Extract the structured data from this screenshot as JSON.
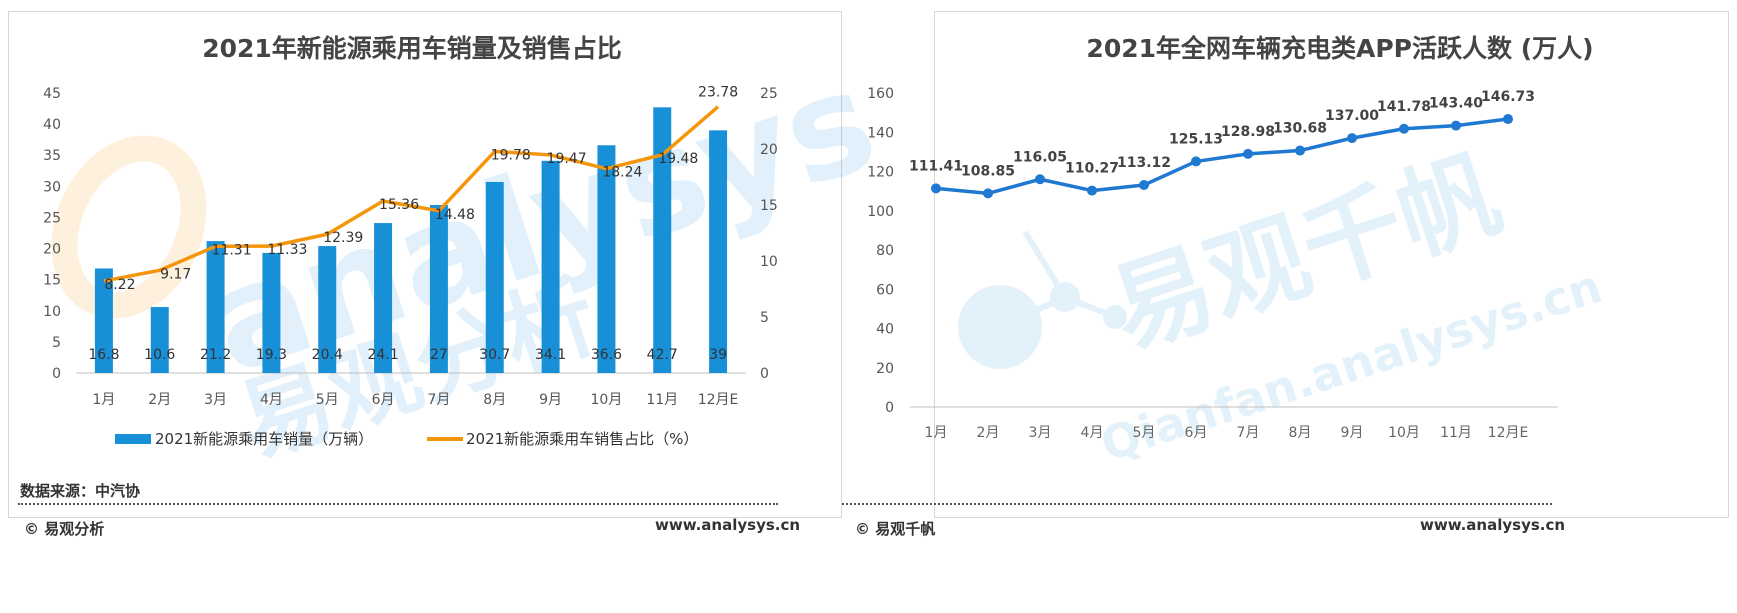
{
  "colors": {
    "bar": "#1890d8",
    "line_orange": "#f5960a",
    "line_blue": "#1f78d1",
    "axis_text": "#555555"
  },
  "left_chart_title": "2021年新能源乘用车销量及销售占比",
  "right_chart_title": "2021年全网车辆充电类APP活跃人数 (万人)",
  "footer": {
    "source": "数据来源：中汽协",
    "copyright_left": "© 易观分析",
    "url_left": "www.analysys.cn",
    "copyright_right": "© 易观千帆",
    "url_right": "www.analysys.cn"
  },
  "watermarks": {
    "left_large": "analysys",
    "left_cn": "易观分析",
    "right_cn": "易观千帆",
    "right_url": "Qianfan.analysys.cn"
  },
  "chart_data": [
    {
      "type": "bar",
      "title": "2021年新能源乘用车销量及销售占比",
      "categories": [
        "1月",
        "2月",
        "3月",
        "4月",
        "5月",
        "6月",
        "7月",
        "8月",
        "9月",
        "10月",
        "11月",
        "12月E"
      ],
      "series": [
        {
          "name": "2021新能源乘用车销量（万辆）",
          "type": "bar",
          "axis": "left",
          "values": [
            16.8,
            10.6,
            21.2,
            19.3,
            20.4,
            24.1,
            27,
            30.7,
            34.1,
            36.6,
            42.7,
            39
          ]
        },
        {
          "name": "2021新能源乘用车销售占比（%）",
          "type": "line",
          "axis": "right",
          "values": [
            8.22,
            9.17,
            11.31,
            11.33,
            12.39,
            15.36,
            14.48,
            19.78,
            19.47,
            18.24,
            19.48,
            23.78
          ]
        }
      ],
      "y_left": {
        "lim": [
          0,
          45
        ],
        "ticks": [
          0,
          5,
          10,
          15,
          20,
          25,
          30,
          35,
          40,
          45
        ]
      },
      "y_right": {
        "lim": [
          0,
          25
        ],
        "ticks": [
          0,
          5,
          10,
          15,
          20,
          25
        ]
      },
      "legend": "bottom"
    },
    {
      "type": "line",
      "title": "2021年全网车辆充电类APP活跃人数 (万人)",
      "categories": [
        "1月",
        "2月",
        "3月",
        "4月",
        "5月",
        "6月",
        "7月",
        "8月",
        "9月",
        "10月",
        "11月",
        "12月E"
      ],
      "series": [
        {
          "values": [
            111.41,
            108.85,
            116.05,
            110.27,
            113.12,
            125.13,
            128.98,
            130.68,
            137.0,
            141.78,
            143.4,
            146.73
          ],
          "labels": [
            "111.41",
            "108.85",
            "116.05",
            "110.27",
            "113.12",
            "125.13",
            "128.98",
            "130.68",
            "137.00",
            "141.78",
            "143.40",
            "146.73"
          ]
        }
      ],
      "y": {
        "lim": [
          0,
          160
        ],
        "ticks": [
          0,
          20,
          40,
          60,
          80,
          100,
          120,
          140,
          160
        ]
      }
    }
  ]
}
